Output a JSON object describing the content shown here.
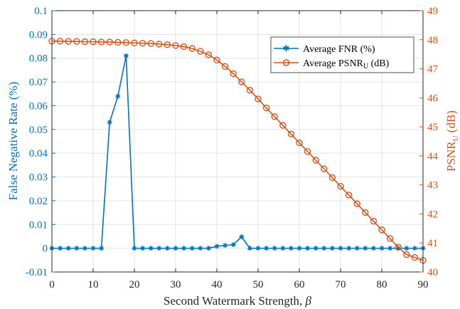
{
  "chart_data": {
    "type": "line",
    "xlabel": "Second Watermark Strength, β",
    "ylabel_left": "False Negative Rate (%)",
    "ylabel_right": "PSNR_U (dB)",
    "xlim": [
      0,
      90
    ],
    "ylim_left": [
      -0.01,
      0.1
    ],
    "ylim_right": [
      40,
      49
    ],
    "x_ticks": [
      0,
      10,
      20,
      30,
      40,
      50,
      60,
      70,
      80,
      90
    ],
    "y_left_ticks": [
      "-0.01",
      "0",
      "0.01",
      "0.02",
      "0.03",
      "0.04",
      "0.05",
      "0.06",
      "0.07",
      "0.08",
      "0.09",
      "0.1"
    ],
    "y_right_ticks": [
      "40",
      "41",
      "42",
      "43",
      "44",
      "45",
      "46",
      "47",
      "48",
      "49"
    ],
    "grid": true,
    "legend_position": "top-right",
    "colors": {
      "fnr": "#0072BD",
      "psnr": "#D95319"
    },
    "x": [
      0,
      2,
      4,
      6,
      8,
      10,
      12,
      14,
      16,
      18,
      20,
      22,
      24,
      26,
      28,
      30,
      32,
      34,
      36,
      38,
      40,
      42,
      44,
      46,
      48,
      50,
      52,
      54,
      56,
      58,
      60,
      62,
      64,
      66,
      68,
      70,
      72,
      74,
      76,
      78,
      80,
      82,
      84,
      86,
      88,
      90
    ],
    "series": [
      {
        "name": "Average FNR (%)",
        "axis": "left",
        "marker": "star",
        "values": [
          0,
          0,
          0,
          0,
          0,
          0,
          0,
          0.053,
          0.064,
          0.081,
          0,
          0,
          0,
          0,
          0,
          0,
          0,
          0,
          0,
          0,
          0.0008,
          0.0012,
          0.0015,
          0.0048,
          0,
          0,
          0,
          0,
          0,
          0,
          0,
          0,
          0,
          0,
          0,
          0,
          0,
          0,
          0,
          0,
          0,
          0,
          0,
          0,
          0,
          0
        ]
      },
      {
        "name": "Average PSNR_U (dB)",
        "axis": "right",
        "marker": "circle",
        "values": [
          47.95,
          47.95,
          47.94,
          47.94,
          47.93,
          47.93,
          47.92,
          47.92,
          47.91,
          47.9,
          47.89,
          47.88,
          47.87,
          47.85,
          47.83,
          47.8,
          47.76,
          47.7,
          47.6,
          47.48,
          47.3,
          47.08,
          46.83,
          46.55,
          46.26,
          45.96,
          45.65,
          45.35,
          45.05,
          44.75,
          44.45,
          44.15,
          43.85,
          43.55,
          43.25,
          42.95,
          42.65,
          42.35,
          42.05,
          41.75,
          41.45,
          41.15,
          40.85,
          40.6,
          40.5,
          40.4
        ]
      }
    ]
  }
}
